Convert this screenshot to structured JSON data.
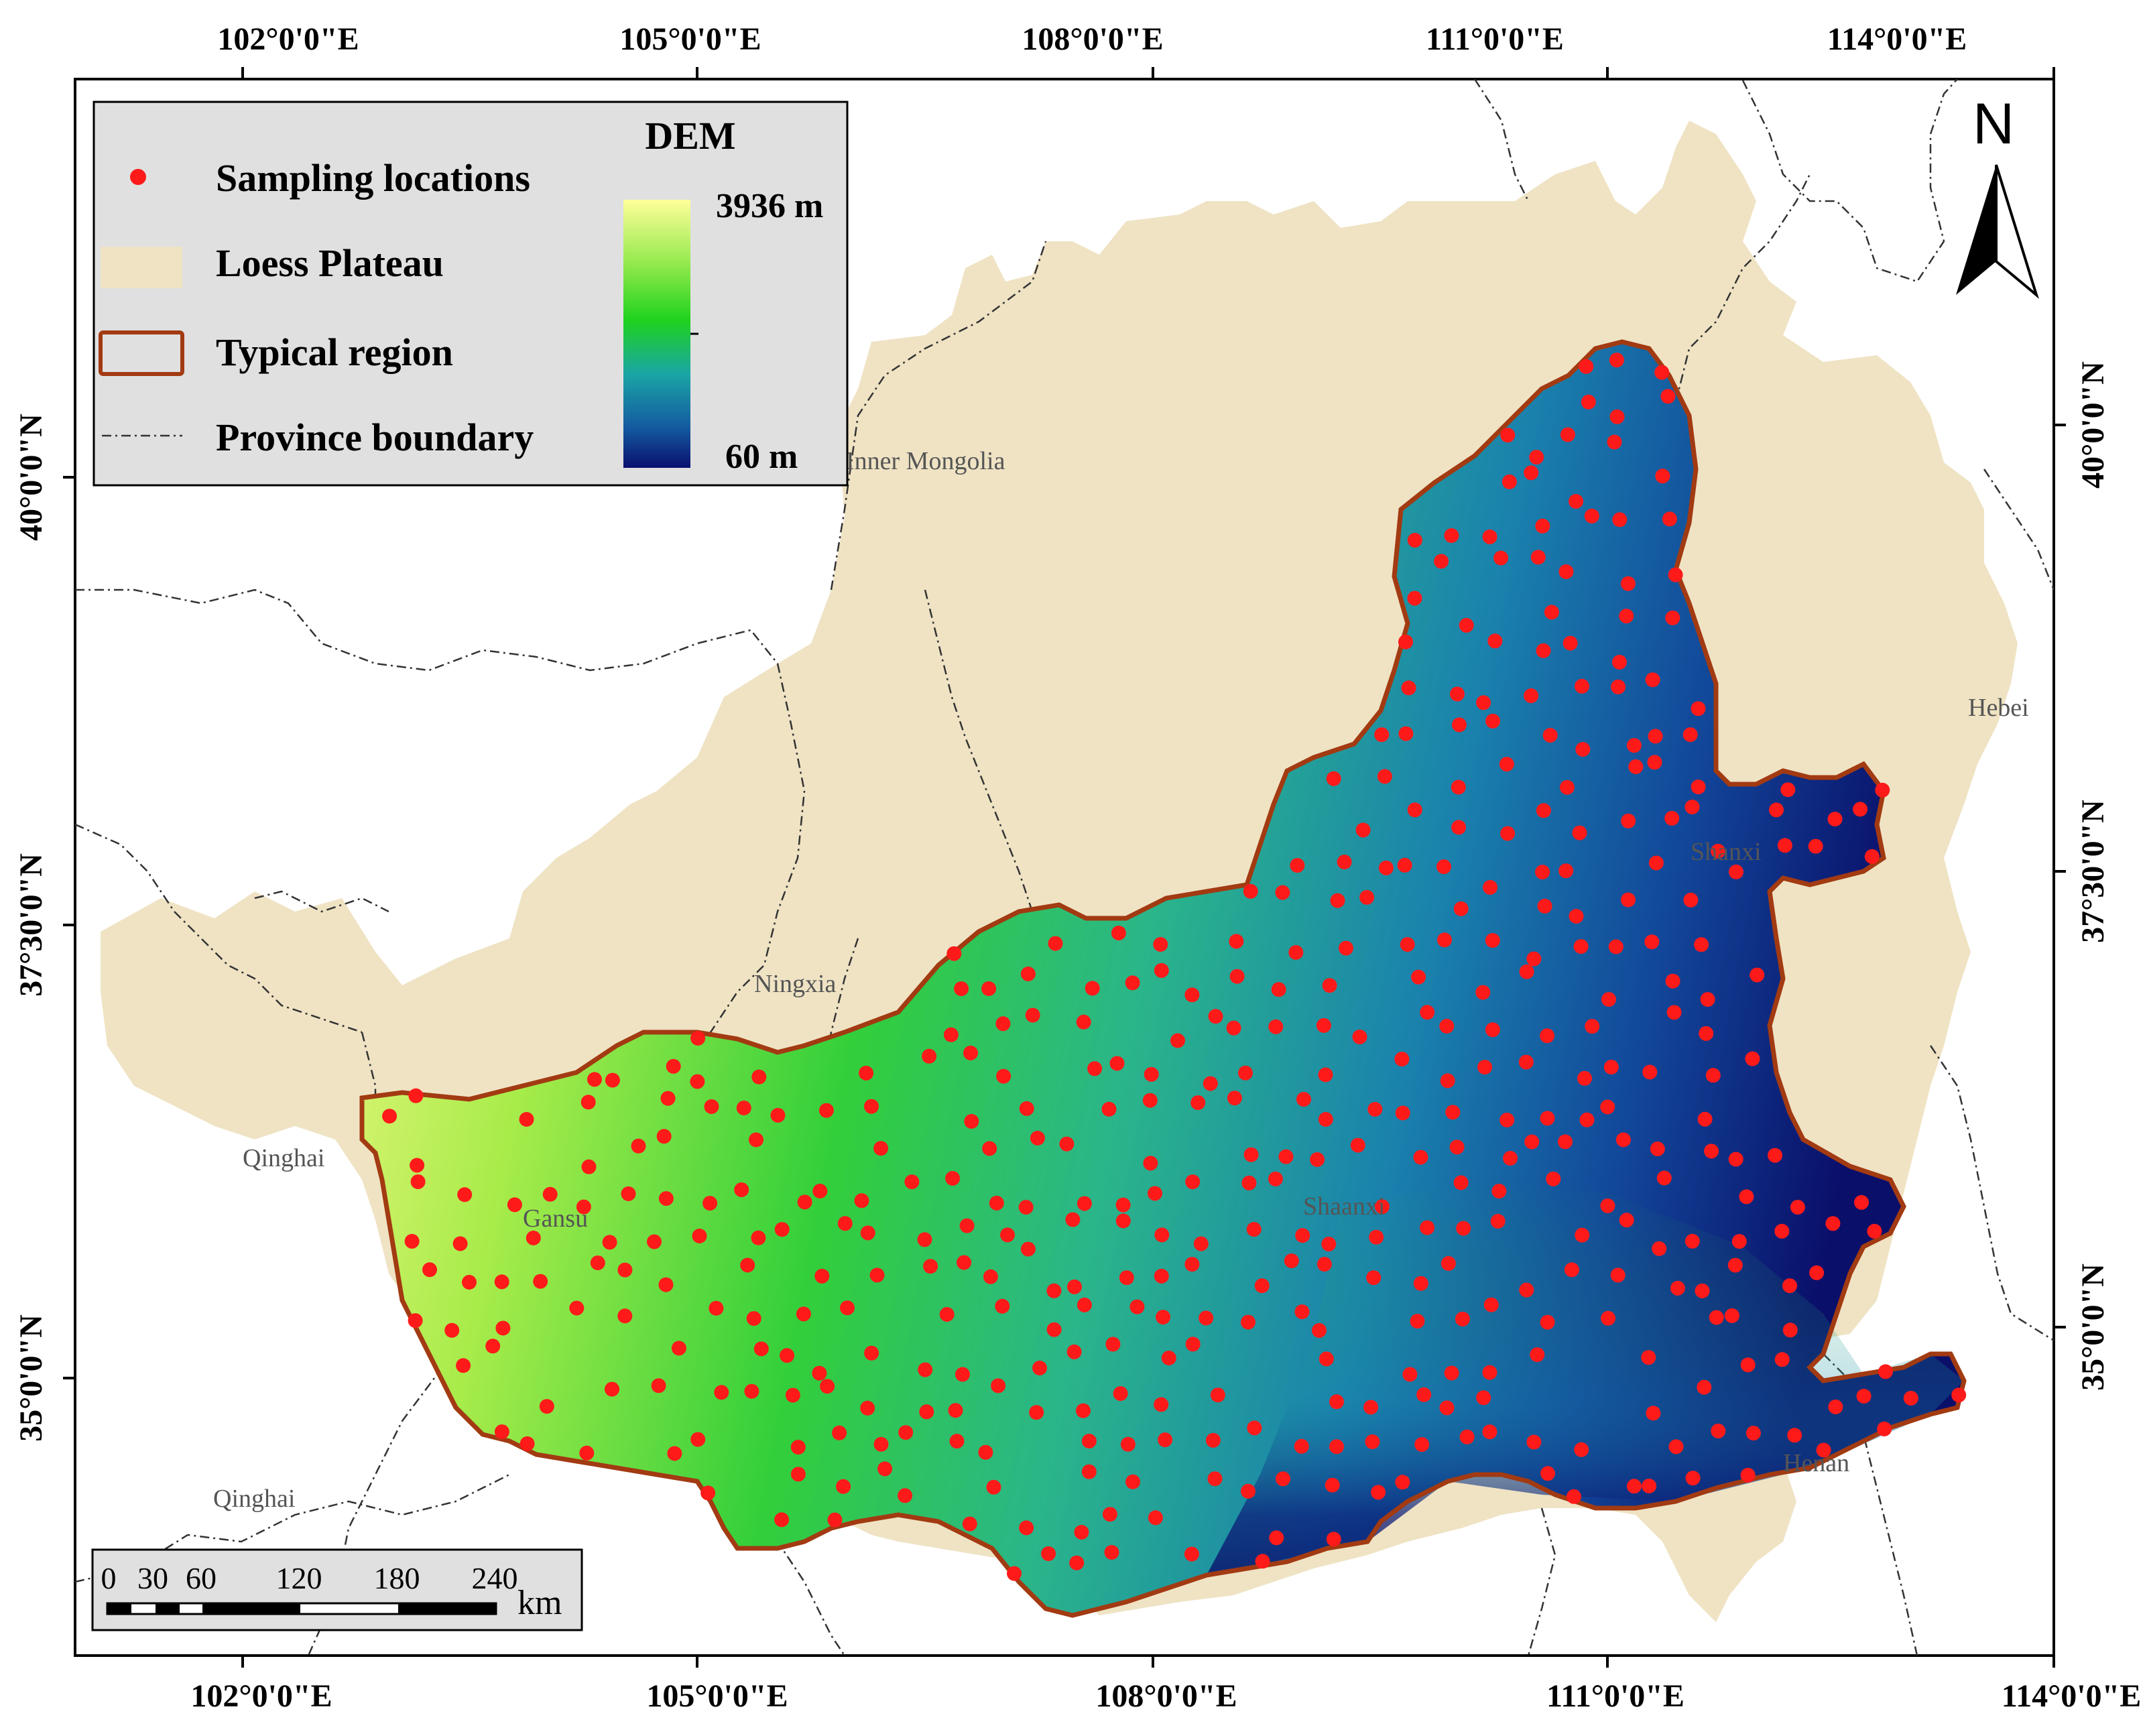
{
  "graticule": {
    "top_labels": [
      "102°0'0\"E",
      "105°0'0\"E",
      "108°0'0\"E",
      "111°0'0\"E",
      "114°0'0\"E"
    ],
    "bottom_labels": [
      "102°0'0\"E",
      "105°0'0\"E",
      "108°0'0\"E",
      "111°0'0\"E",
      "114°0'0\"E"
    ],
    "left_labels": [
      "40°0'0\"N",
      "37°30'0\"N",
      "35°0'0\"N"
    ],
    "right_labels": [
      "40°0'0\"N",
      "37°30'0\"N",
      "35°0'0\"N"
    ]
  },
  "province_labels": {
    "inner_mongolia": "Inner Mongolia",
    "ningxia": "Ningxia",
    "qinghai_west": "Qinghai",
    "gansu": "Gansu",
    "qinghai_south": "Qinghai",
    "shaanxi": "Shaanxi",
    "shanxi": "Shanxi",
    "hebei": "Hebei",
    "henan": "Henan"
  },
  "legend": {
    "sampling": "Sampling locations",
    "loess": "Loess Plateau",
    "typical": "Typical region",
    "province": "Province boundary",
    "dem_title": "DEM",
    "dem_max": "3936 m",
    "dem_min": "60 m"
  },
  "colors": {
    "loess_plateau": "#efe3c4",
    "typical_region_outline": "#a23a12",
    "sampling_point": "#ff1a1a",
    "dem_high": "#ffff99",
    "dem_mid_high": "#1ee01e",
    "dem_mid": "#1a9aa5",
    "dem_low": "#0a1070"
  },
  "scale_bar": {
    "ticks": [
      "0",
      "30",
      "60",
      "120",
      "180",
      "240"
    ],
    "unit": "km"
  },
  "north_arrow": {
    "label": "N"
  }
}
